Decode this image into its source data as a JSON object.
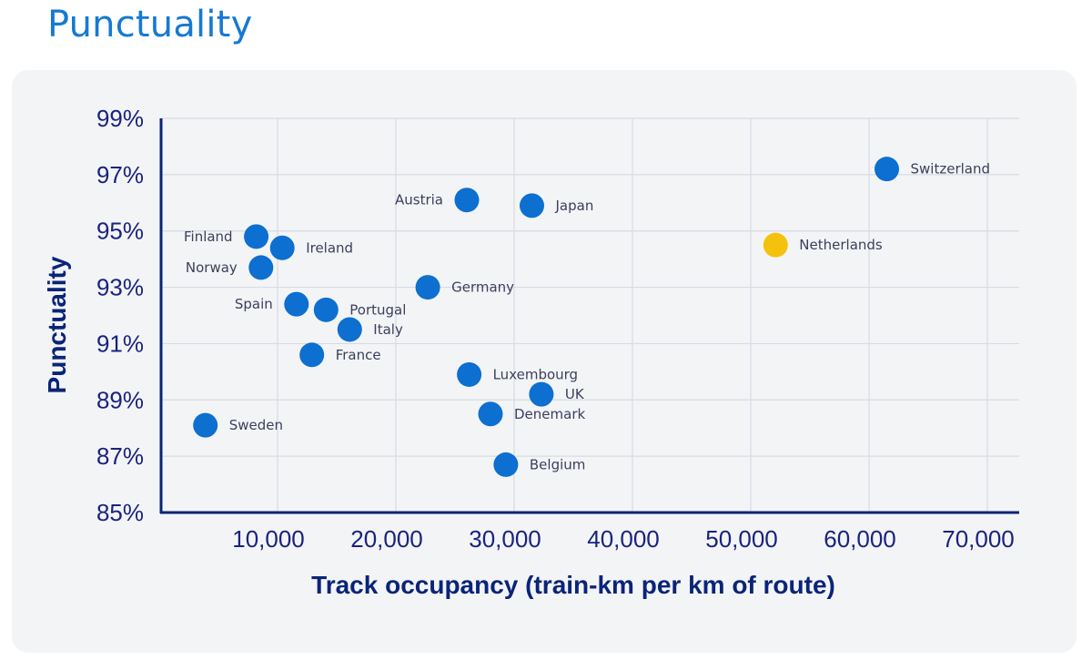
{
  "page": {
    "title": "Punctuality"
  },
  "colors": {
    "title": "#1679d2",
    "point": "#0d6fd0",
    "highlight": "#f4c20d",
    "axis": "#0a2478",
    "grid": "#d7dbe4",
    "panel": "#f3f4f6"
  },
  "chart_data": {
    "type": "scatter",
    "title": "",
    "xlabel": "Track occupancy (train-km per km of route)",
    "ylabel": "Punctuality",
    "xlim": [
      0,
      72000
    ],
    "ylim": [
      85,
      99
    ],
    "xticks": [
      10000,
      20000,
      30000,
      40000,
      50000,
      60000,
      70000
    ],
    "xtick_labels": [
      "10,000",
      "20,000",
      "30,000",
      "40,000",
      "50,000",
      "60,000",
      "70,000"
    ],
    "yticks": [
      85,
      87,
      89,
      91,
      93,
      95,
      97,
      99
    ],
    "ytick_labels": [
      "85%",
      "87%",
      "89%",
      "91%",
      "93%",
      "95%",
      "97%",
      "99%"
    ],
    "grid": true,
    "points": [
      {
        "label": "Switzerland",
        "x": 61500,
        "y": 97.2,
        "highlight": false,
        "label_side": "right"
      },
      {
        "label": "Austria",
        "x": 26000,
        "y": 96.1,
        "highlight": false,
        "label_side": "left"
      },
      {
        "label": "Japan",
        "x": 31500,
        "y": 95.9,
        "highlight": false,
        "label_side": "right"
      },
      {
        "label": "Finland",
        "x": 8200,
        "y": 94.8,
        "highlight": false,
        "label_side": "left"
      },
      {
        "label": "Ireland",
        "x": 10400,
        "y": 94.4,
        "highlight": false,
        "label_side": "right"
      },
      {
        "label": "Netherlands",
        "x": 52100,
        "y": 94.5,
        "highlight": true,
        "label_side": "right"
      },
      {
        "label": "Norway",
        "x": 8600,
        "y": 93.7,
        "highlight": false,
        "label_side": "left"
      },
      {
        "label": "Germany",
        "x": 22700,
        "y": 93.0,
        "highlight": false,
        "label_side": "right"
      },
      {
        "label": "Spain",
        "x": 11600,
        "y": 92.4,
        "highlight": false,
        "label_side": "left"
      },
      {
        "label": "Portugal",
        "x": 14100,
        "y": 92.2,
        "highlight": false,
        "label_side": "right"
      },
      {
        "label": "Italy",
        "x": 16100,
        "y": 91.5,
        "highlight": false,
        "label_side": "right"
      },
      {
        "label": "France",
        "x": 12900,
        "y": 90.6,
        "highlight": false,
        "label_side": "right"
      },
      {
        "label": "Luxembourg",
        "x": 26200,
        "y": 89.9,
        "highlight": false,
        "label_side": "right"
      },
      {
        "label": "UK",
        "x": 32300,
        "y": 89.2,
        "highlight": false,
        "label_side": "right"
      },
      {
        "label": "Denemark",
        "x": 28000,
        "y": 88.5,
        "highlight": false,
        "label_side": "right"
      },
      {
        "label": "Sweden",
        "x": 3900,
        "y": 88.1,
        "highlight": false,
        "label_side": "right"
      },
      {
        "label": "Belgium",
        "x": 29300,
        "y": 86.7,
        "highlight": false,
        "label_side": "right"
      }
    ]
  }
}
